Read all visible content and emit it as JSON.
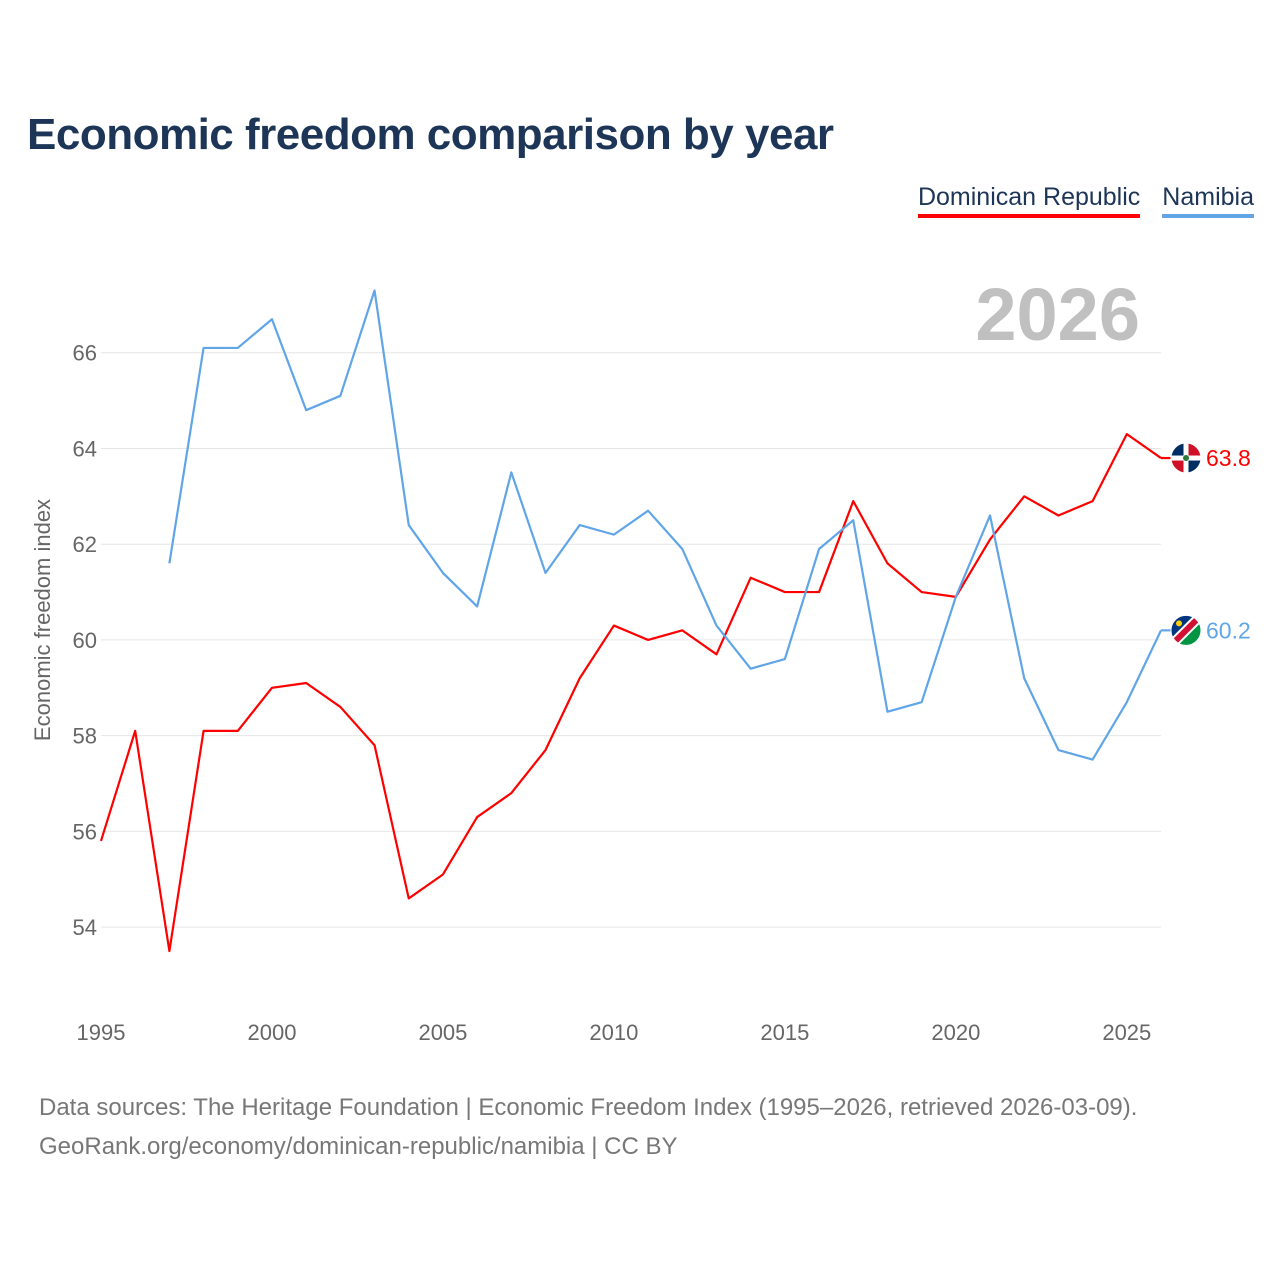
{
  "chart_data": {
    "type": "line",
    "title": "Economic freedom comparison by year",
    "ylabel": "Economic freedom index",
    "xlabel": "",
    "xlim": [
      1995,
      2026
    ],
    "ylim": [
      53,
      68
    ],
    "x_ticks": [
      1995,
      2000,
      2005,
      2010,
      2015,
      2020,
      2025
    ],
    "y_ticks": [
      54,
      56,
      58,
      60,
      62,
      64,
      66
    ],
    "grid": true,
    "legend_position": "top-right",
    "year_label": "2026",
    "series": [
      {
        "name": "Dominican Republic",
        "color": "#ff0000",
        "end_label": "63.8",
        "flag": "dominican-republic-flag",
        "x": [
          1995,
          1996,
          1997,
          1998,
          1999,
          2000,
          2001,
          2002,
          2003,
          2004,
          2005,
          2006,
          2007,
          2008,
          2009,
          2010,
          2011,
          2012,
          2013,
          2014,
          2015,
          2016,
          2017,
          2018,
          2019,
          2020,
          2021,
          2022,
          2023,
          2024,
          2025,
          2026
        ],
        "values": [
          55.8,
          58.1,
          53.5,
          58.1,
          58.1,
          59.0,
          59.1,
          58.6,
          57.8,
          54.6,
          55.1,
          56.3,
          56.8,
          57.7,
          59.2,
          60.3,
          60.0,
          60.2,
          59.7,
          61.3,
          61.0,
          61.0,
          62.9,
          61.6,
          61.0,
          60.9,
          62.1,
          63.0,
          62.6,
          62.9,
          64.3,
          63.8
        ]
      },
      {
        "name": "Namibia",
        "color": "#60a5e8",
        "end_label": "60.2",
        "flag": "namibia-flag",
        "x": [
          1997,
          1998,
          1999,
          2000,
          2001,
          2002,
          2003,
          2004,
          2005,
          2006,
          2007,
          2008,
          2009,
          2010,
          2011,
          2012,
          2013,
          2014,
          2015,
          2016,
          2017,
          2018,
          2019,
          2020,
          2021,
          2022,
          2023,
          2024,
          2025,
          2026
        ],
        "values": [
          61.6,
          66.1,
          66.1,
          66.7,
          64.8,
          65.1,
          67.3,
          62.4,
          61.4,
          60.7,
          63.5,
          61.4,
          62.4,
          62.2,
          62.7,
          61.9,
          60.3,
          59.4,
          59.6,
          61.9,
          62.5,
          58.5,
          58.7,
          60.9,
          62.6,
          59.2,
          57.7,
          57.5,
          58.7,
          60.2
        ]
      }
    ]
  },
  "source": {
    "line1": "Data sources: The Heritage Foundation | Economic Freedom Index (1995–2026, retrieved 2026-03-09).",
    "line2": "GeoRank.org/economy/dominican-republic/namibia | CC BY"
  }
}
